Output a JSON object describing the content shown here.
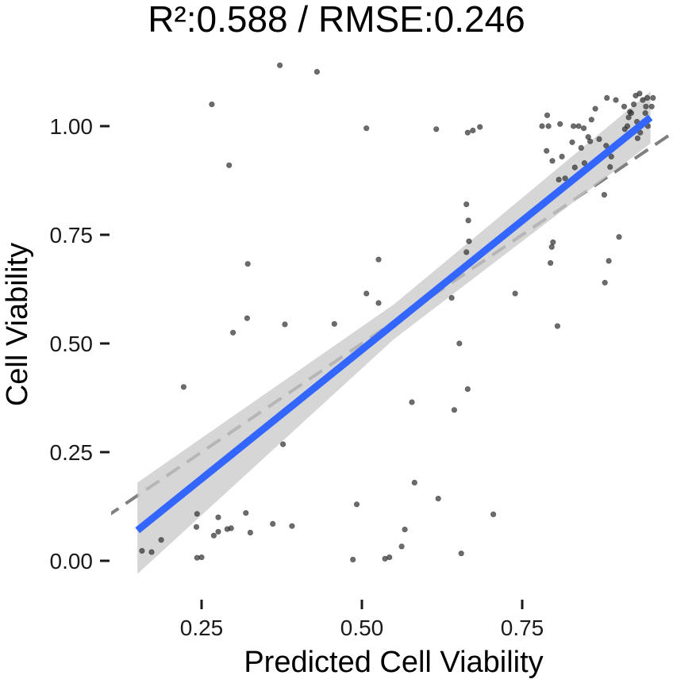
{
  "chart_data": {
    "type": "scatter",
    "title": "R²:0.588 / RMSE:0.246",
    "xlabel": "Predicted Cell Viability",
    "ylabel": "Cell Viability",
    "xlim": [
      0.1,
      1.0
    ],
    "ylim": [
      -0.05,
      1.15
    ],
    "x_ticks": [
      0.25,
      0.5,
      0.75
    ],
    "x_tick_labels": [
      "0.25",
      "0.50",
      "0.75"
    ],
    "y_ticks": [
      0.0,
      0.25,
      0.5,
      0.75,
      1.0
    ],
    "y_tick_labels": [
      "0.00",
      "0.25",
      "0.50",
      "0.75",
      "1.00"
    ],
    "grid": false,
    "colors": {
      "points": "#333333",
      "fit_line": "#3366FF",
      "confidence_band": "#c8c8c8",
      "identity_line": "#808080"
    },
    "fit_line": {
      "x": [
        0.15,
        0.95
      ],
      "y": [
        0.07,
        1.02
      ]
    },
    "confidence_band": {
      "x": [
        0.15,
        0.55,
        0.95
      ],
      "lower": [
        -0.03,
        0.51,
        0.96
      ],
      "upper": [
        0.18,
        0.59,
        1.08
      ]
    },
    "identity_line": {
      "x": [
        0.1,
        1.0
      ],
      "y": [
        0.1,
        1.0
      ]
    },
    "points": [
      {
        "x": 0.372,
        "y": 1.14
      },
      {
        "x": 0.43,
        "y": 1.125
      },
      {
        "x": 0.266,
        "y": 1.05
      },
      {
        "x": 0.293,
        "y": 0.91
      },
      {
        "x": 0.507,
        "y": 0.995
      },
      {
        "x": 0.616,
        "y": 0.993
      },
      {
        "x": 0.665,
        "y": 0.985
      },
      {
        "x": 0.673,
        "y": 0.99
      },
      {
        "x": 0.684,
        "y": 0.998
      },
      {
        "x": 0.322,
        "y": 0.683
      },
      {
        "x": 0.526,
        "y": 0.693
      },
      {
        "x": 0.507,
        "y": 0.615
      },
      {
        "x": 0.526,
        "y": 0.593
      },
      {
        "x": 0.321,
        "y": 0.558
      },
      {
        "x": 0.299,
        "y": 0.525
      },
      {
        "x": 0.38,
        "y": 0.544
      },
      {
        "x": 0.457,
        "y": 0.545
      },
      {
        "x": 0.222,
        "y": 0.4
      },
      {
        "x": 0.377,
        "y": 0.268
      },
      {
        "x": 0.578,
        "y": 0.365
      },
      {
        "x": 0.644,
        "y": 0.347
      },
      {
        "x": 0.652,
        "y": 0.5
      },
      {
        "x": 0.665,
        "y": 0.395
      },
      {
        "x": 0.663,
        "y": 0.82
      },
      {
        "x": 0.666,
        "y": 0.783
      },
      {
        "x": 0.667,
        "y": 0.735
      },
      {
        "x": 0.663,
        "y": 0.71
      },
      {
        "x": 0.64,
        "y": 0.605
      },
      {
        "x": 0.739,
        "y": 0.615
      },
      {
        "x": 0.798,
        "y": 0.733
      },
      {
        "x": 0.796,
        "y": 0.722
      },
      {
        "x": 0.794,
        "y": 0.685
      },
      {
        "x": 0.805,
        "y": 0.54
      },
      {
        "x": 0.582,
        "y": 0.18
      },
      {
        "x": 0.619,
        "y": 0.143
      },
      {
        "x": 0.705,
        "y": 0.107
      },
      {
        "x": 0.492,
        "y": 0.13
      },
      {
        "x": 0.567,
        "y": 0.072
      },
      {
        "x": 0.562,
        "y": 0.033
      },
      {
        "x": 0.543,
        "y": 0.008
      },
      {
        "x": 0.536,
        "y": 0.005
      },
      {
        "x": 0.486,
        "y": 0.003
      },
      {
        "x": 0.655,
        "y": 0.017
      },
      {
        "x": 0.157,
        "y": 0.023
      },
      {
        "x": 0.172,
        "y": 0.02
      },
      {
        "x": 0.187,
        "y": 0.048
      },
      {
        "x": 0.243,
        "y": 0.108
      },
      {
        "x": 0.242,
        "y": 0.078
      },
      {
        "x": 0.243,
        "y": 0.007
      },
      {
        "x": 0.25,
        "y": 0.008
      },
      {
        "x": 0.269,
        "y": 0.058
      },
      {
        "x": 0.276,
        "y": 0.067
      },
      {
        "x": 0.276,
        "y": 0.1
      },
      {
        "x": 0.29,
        "y": 0.073
      },
      {
        "x": 0.296,
        "y": 0.075
      },
      {
        "x": 0.319,
        "y": 0.11
      },
      {
        "x": 0.326,
        "y": 0.065
      },
      {
        "x": 0.361,
        "y": 0.085
      },
      {
        "x": 0.391,
        "y": 0.08
      },
      {
        "x": 0.781,
        "y": 1.0
      },
      {
        "x": 0.791,
        "y": 1.0
      },
      {
        "x": 0.789,
        "y": 1.025
      },
      {
        "x": 0.809,
        "y": 1.005
      },
      {
        "x": 0.788,
        "y": 0.943
      },
      {
        "x": 0.797,
        "y": 0.92
      },
      {
        "x": 0.812,
        "y": 0.93
      },
      {
        "x": 0.83,
        "y": 1.0
      },
      {
        "x": 0.838,
        "y": 1.0
      },
      {
        "x": 0.828,
        "y": 0.963
      },
      {
        "x": 0.842,
        "y": 0.95
      },
      {
        "x": 0.846,
        "y": 0.995
      },
      {
        "x": 0.858,
        "y": 1.015
      },
      {
        "x": 0.864,
        "y": 1.04
      },
      {
        "x": 0.882,
        "y": 1.065
      },
      {
        "x": 0.896,
        "y": 1.06
      },
      {
        "x": 0.909,
        "y": 1.045
      },
      {
        "x": 0.918,
        "y": 1.033
      },
      {
        "x": 0.916,
        "y": 1.02
      },
      {
        "x": 0.92,
        "y": 1.03
      },
      {
        "x": 0.924,
        "y": 1.05
      },
      {
        "x": 0.927,
        "y": 1.07
      },
      {
        "x": 0.933,
        "y": 1.075
      },
      {
        "x": 0.938,
        "y": 1.06
      },
      {
        "x": 0.943,
        "y": 1.045
      },
      {
        "x": 0.942,
        "y": 1.03
      },
      {
        "x": 0.946,
        "y": 1.0
      },
      {
        "x": 0.934,
        "y": 0.985
      },
      {
        "x": 0.93,
        "y": 0.972
      },
      {
        "x": 0.945,
        "y": 1.065
      },
      {
        "x": 0.952,
        "y": 1.045
      },
      {
        "x": 0.954,
        "y": 1.065
      },
      {
        "x": 0.914,
        "y": 1.0
      },
      {
        "x": 0.91,
        "y": 0.993
      },
      {
        "x": 0.925,
        "y": 0.988
      },
      {
        "x": 0.929,
        "y": 1.01
      },
      {
        "x": 0.881,
        "y": 0.955
      },
      {
        "x": 0.87,
        "y": 0.97
      },
      {
        "x": 0.853,
        "y": 0.975
      },
      {
        "x": 0.856,
        "y": 0.965
      },
      {
        "x": 0.847,
        "y": 0.915
      },
      {
        "x": 0.832,
        "y": 0.905
      },
      {
        "x": 0.844,
        "y": 0.893
      },
      {
        "x": 0.817,
        "y": 0.88
      },
      {
        "x": 0.807,
        "y": 0.877
      },
      {
        "x": 0.878,
        "y": 0.842
      },
      {
        "x": 0.901,
        "y": 0.745
      },
      {
        "x": 0.885,
        "y": 0.69
      },
      {
        "x": 0.879,
        "y": 0.64
      },
      {
        "x": 0.887,
        "y": 0.906
      },
      {
        "x": 0.889,
        "y": 0.93
      }
    ]
  }
}
